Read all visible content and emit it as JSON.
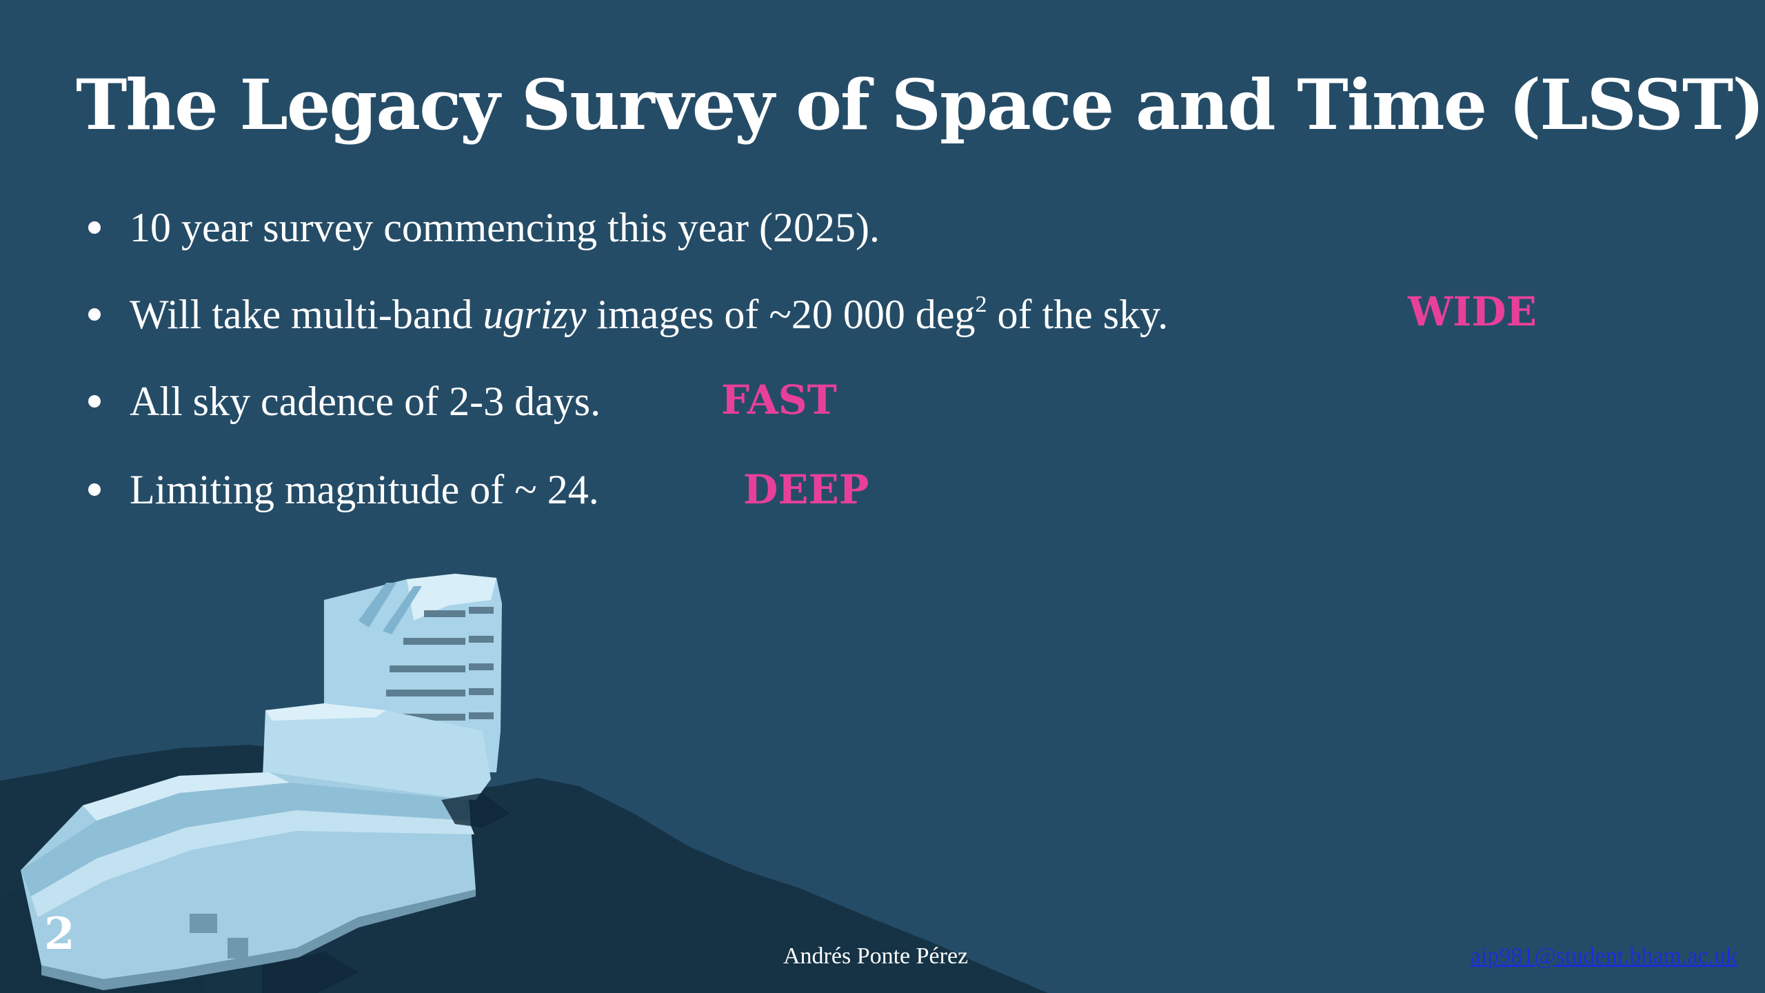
{
  "slide": {
    "title": "The Legacy Survey of Space and Time (LSST)",
    "bullets": [
      {
        "text": "10 year survey commencing this year (2025).",
        "tag": ""
      },
      {
        "before": "Will take multi-band ",
        "italic": "ugrizy",
        "middle": " images of ~20 000 deg",
        "sup": "2",
        "after": " of the sky.",
        "tag": "WIDE"
      },
      {
        "text": "All sky cadence of 2-3 days.",
        "tag": "FAST"
      },
      {
        "text": "Limiting magnitude of ~ 24.",
        "tag": "DEEP"
      }
    ],
    "page_number": "2",
    "author": "Andrés Ponte Pérez",
    "email": "aip981@student.bham.ac.uk",
    "colors": {
      "background": "#254c67",
      "accent": "#e8409a",
      "mountain": "#163346",
      "building": "#a9d3e8",
      "link": "#1a2fd6"
    }
  }
}
